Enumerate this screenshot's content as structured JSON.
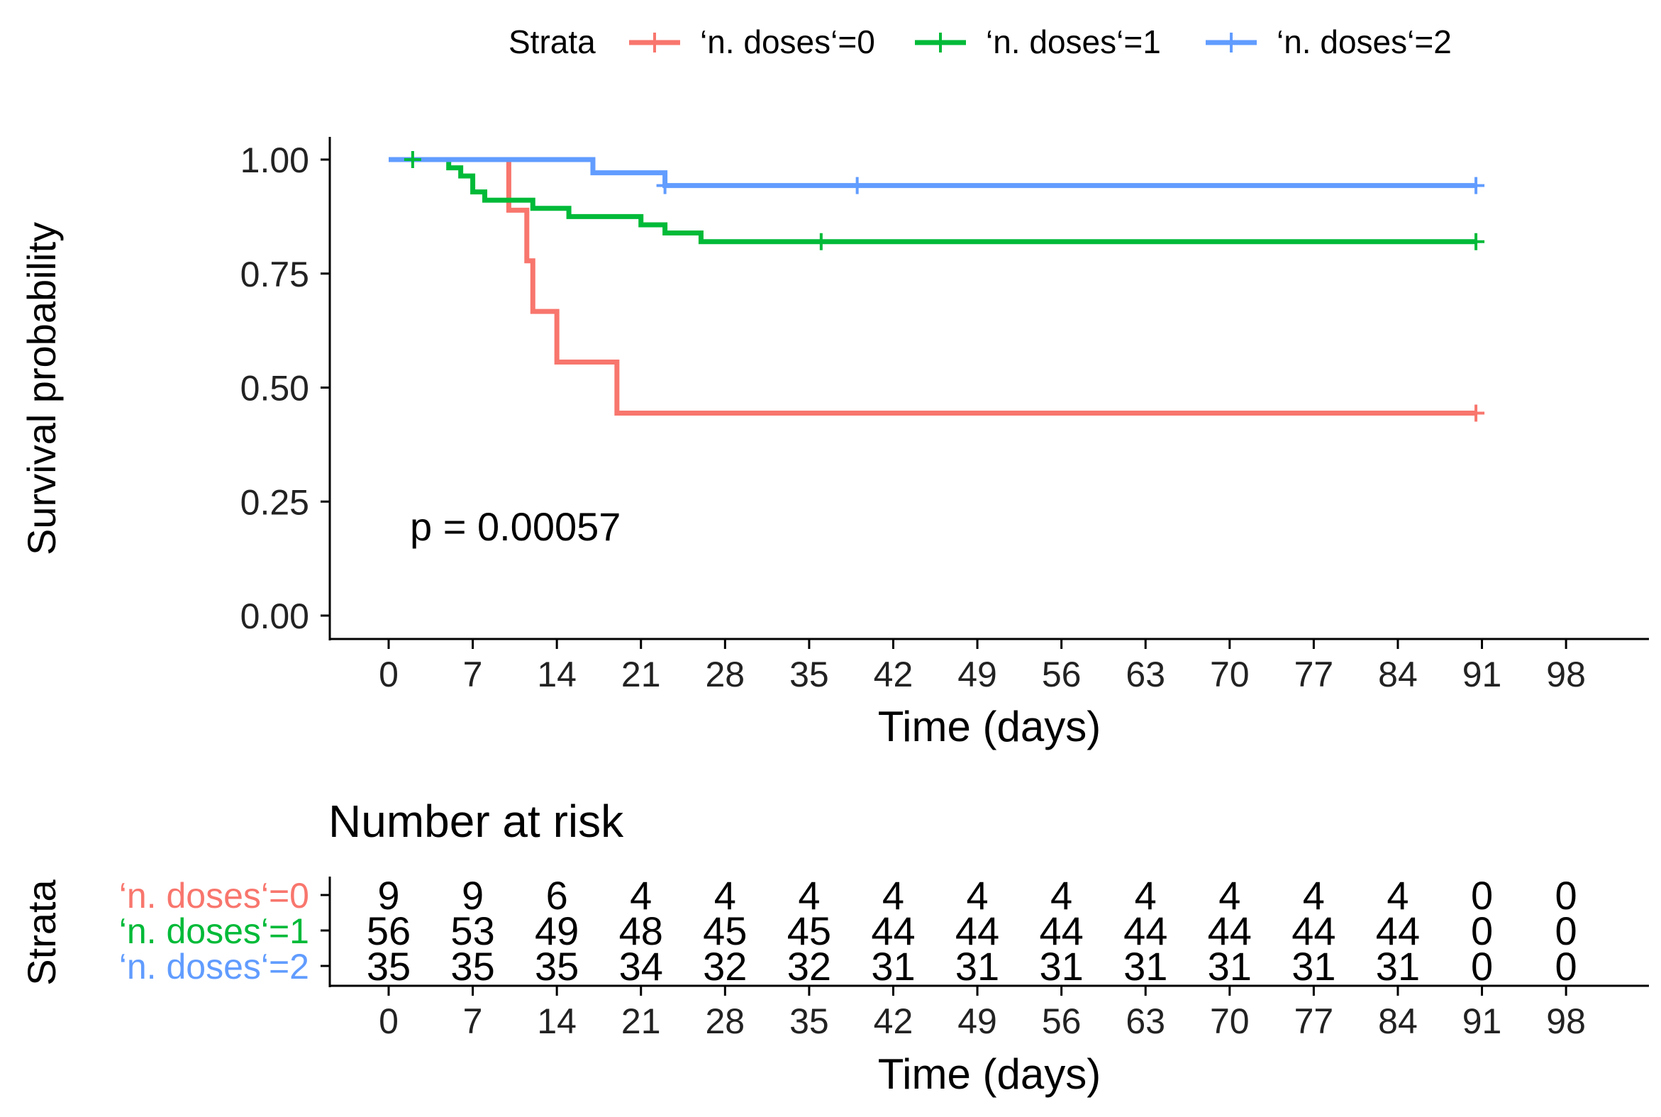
{
  "legend": {
    "title": "Strata",
    "labels": [
      "‘n. doses‘=0",
      "‘n. doses‘=1",
      "‘n. doses‘=2"
    ]
  },
  "chart_data": [
    {
      "type": "line",
      "subtype": "kaplan-meier-step",
      "ylabel": "Survival probability",
      "xlabel": "Time (days)",
      "xlim": [
        0,
        105
      ],
      "ylim": [
        0,
        1
      ],
      "x_ticks": [
        0,
        7,
        14,
        21,
        28,
        35,
        42,
        49,
        56,
        63,
        70,
        77,
        84,
        91,
        98
      ],
      "y_ticks": [
        0.0,
        0.25,
        0.5,
        0.75,
        1.0
      ],
      "y_tick_labels": [
        "0.00",
        "0.25",
        "0.50",
        "0.75",
        "1.00"
      ],
      "annotation": "p = 0.00057",
      "legend_position": "top",
      "grid": false,
      "series": [
        {
          "name": "‘n. doses‘=0",
          "color": "#F8766D",
          "steps": [
            [
              0,
              1.0
            ],
            [
              10,
              0.889
            ],
            [
              11.5,
              0.778
            ],
            [
              12,
              0.667
            ],
            [
              14,
              0.556
            ],
            [
              19,
              0.444
            ],
            [
              90.5,
              0.444
            ]
          ],
          "censor": [
            [
              90.5,
              0.444
            ]
          ]
        },
        {
          "name": "‘n. doses‘=1",
          "color": "#00BA38",
          "steps": [
            [
              0,
              1.0
            ],
            [
              5,
              0.982
            ],
            [
              6,
              0.964
            ],
            [
              7,
              0.929
            ],
            [
              8,
              0.911
            ],
            [
              10,
              0.911
            ],
            [
              12,
              0.893
            ],
            [
              15,
              0.875
            ],
            [
              18,
              0.875
            ],
            [
              21,
              0.857
            ],
            [
              23,
              0.839
            ],
            [
              26,
              0.82
            ],
            [
              90.5,
              0.82
            ]
          ],
          "censor": [
            [
              2,
              1.0
            ],
            [
              36,
              0.82
            ],
            [
              90.5,
              0.82
            ]
          ]
        },
        {
          "name": "‘n. doses‘=2",
          "color": "#619CFF",
          "steps": [
            [
              0,
              1.0
            ],
            [
              17,
              0.971
            ],
            [
              23,
              0.943
            ],
            [
              90.5,
              0.943
            ]
          ],
          "censor": [
            [
              23,
              0.943
            ],
            [
              39,
              0.943
            ],
            [
              90.5,
              0.943
            ]
          ]
        }
      ]
    },
    {
      "type": "table",
      "title": "Number at risk",
      "ylabel": "Strata",
      "xlabel": "Time (days)",
      "x_ticks": [
        0,
        7,
        14,
        21,
        28,
        35,
        42,
        49,
        56,
        63,
        70,
        77,
        84,
        91,
        98
      ],
      "rows": [
        {
          "name": "‘n. doses‘=0",
          "color": "#F8766D",
          "values": [
            9,
            9,
            6,
            4,
            4,
            4,
            4,
            4,
            4,
            4,
            4,
            4,
            4,
            0,
            0
          ]
        },
        {
          "name": "‘n. doses‘=1",
          "color": "#00BA38",
          "values": [
            56,
            53,
            49,
            48,
            45,
            45,
            44,
            44,
            44,
            44,
            44,
            44,
            44,
            0,
            0
          ]
        },
        {
          "name": "‘n. doses‘=2",
          "color": "#619CFF",
          "values": [
            35,
            35,
            35,
            34,
            32,
            32,
            31,
            31,
            31,
            31,
            31,
            31,
            31,
            0,
            0
          ]
        }
      ]
    }
  ]
}
